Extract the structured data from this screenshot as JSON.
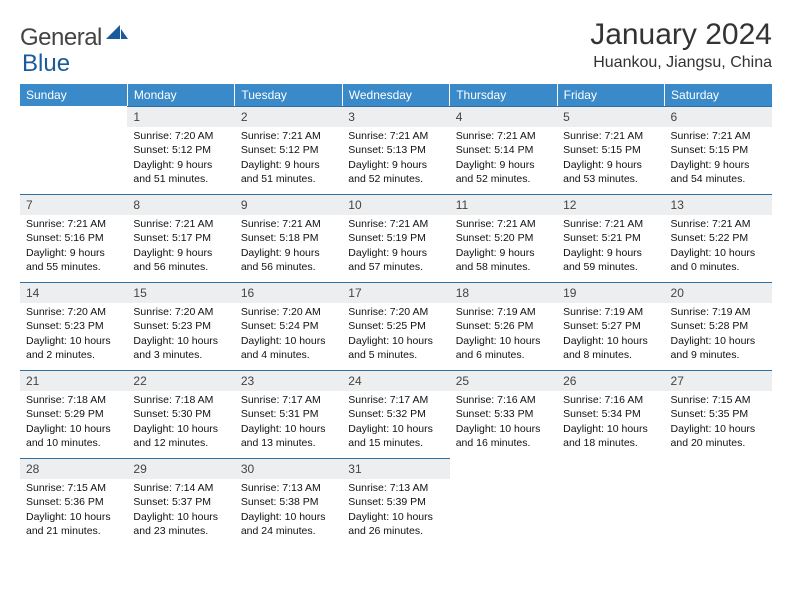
{
  "brand": {
    "name1": "General",
    "name2": "Blue"
  },
  "title": "January 2024",
  "location": "Huankou, Jiangsu, China",
  "colors": {
    "header_bg": "#3a8ac9",
    "header_text": "#ffffff",
    "daynum_bg": "#eceef0",
    "daynum_border": "#2f6fa3",
    "text": "#111111",
    "logo_gray": "#555555",
    "logo_blue": "#1a5b9c"
  },
  "weekdays": [
    "Sunday",
    "Monday",
    "Tuesday",
    "Wednesday",
    "Thursday",
    "Friday",
    "Saturday"
  ],
  "weeks": [
    [
      {
        "n": "",
        "sr": "",
        "ss": "",
        "dl": ""
      },
      {
        "n": "1",
        "sr": "Sunrise: 7:20 AM",
        "ss": "Sunset: 5:12 PM",
        "dl": "Daylight: 9 hours and 51 minutes."
      },
      {
        "n": "2",
        "sr": "Sunrise: 7:21 AM",
        "ss": "Sunset: 5:12 PM",
        "dl": "Daylight: 9 hours and 51 minutes."
      },
      {
        "n": "3",
        "sr": "Sunrise: 7:21 AM",
        "ss": "Sunset: 5:13 PM",
        "dl": "Daylight: 9 hours and 52 minutes."
      },
      {
        "n": "4",
        "sr": "Sunrise: 7:21 AM",
        "ss": "Sunset: 5:14 PM",
        "dl": "Daylight: 9 hours and 52 minutes."
      },
      {
        "n": "5",
        "sr": "Sunrise: 7:21 AM",
        "ss": "Sunset: 5:15 PM",
        "dl": "Daylight: 9 hours and 53 minutes."
      },
      {
        "n": "6",
        "sr": "Sunrise: 7:21 AM",
        "ss": "Sunset: 5:15 PM",
        "dl": "Daylight: 9 hours and 54 minutes."
      }
    ],
    [
      {
        "n": "7",
        "sr": "Sunrise: 7:21 AM",
        "ss": "Sunset: 5:16 PM",
        "dl": "Daylight: 9 hours and 55 minutes."
      },
      {
        "n": "8",
        "sr": "Sunrise: 7:21 AM",
        "ss": "Sunset: 5:17 PM",
        "dl": "Daylight: 9 hours and 56 minutes."
      },
      {
        "n": "9",
        "sr": "Sunrise: 7:21 AM",
        "ss": "Sunset: 5:18 PM",
        "dl": "Daylight: 9 hours and 56 minutes."
      },
      {
        "n": "10",
        "sr": "Sunrise: 7:21 AM",
        "ss": "Sunset: 5:19 PM",
        "dl": "Daylight: 9 hours and 57 minutes."
      },
      {
        "n": "11",
        "sr": "Sunrise: 7:21 AM",
        "ss": "Sunset: 5:20 PM",
        "dl": "Daylight: 9 hours and 58 minutes."
      },
      {
        "n": "12",
        "sr": "Sunrise: 7:21 AM",
        "ss": "Sunset: 5:21 PM",
        "dl": "Daylight: 9 hours and 59 minutes."
      },
      {
        "n": "13",
        "sr": "Sunrise: 7:21 AM",
        "ss": "Sunset: 5:22 PM",
        "dl": "Daylight: 10 hours and 0 minutes."
      }
    ],
    [
      {
        "n": "14",
        "sr": "Sunrise: 7:20 AM",
        "ss": "Sunset: 5:23 PM",
        "dl": "Daylight: 10 hours and 2 minutes."
      },
      {
        "n": "15",
        "sr": "Sunrise: 7:20 AM",
        "ss": "Sunset: 5:23 PM",
        "dl": "Daylight: 10 hours and 3 minutes."
      },
      {
        "n": "16",
        "sr": "Sunrise: 7:20 AM",
        "ss": "Sunset: 5:24 PM",
        "dl": "Daylight: 10 hours and 4 minutes."
      },
      {
        "n": "17",
        "sr": "Sunrise: 7:20 AM",
        "ss": "Sunset: 5:25 PM",
        "dl": "Daylight: 10 hours and 5 minutes."
      },
      {
        "n": "18",
        "sr": "Sunrise: 7:19 AM",
        "ss": "Sunset: 5:26 PM",
        "dl": "Daylight: 10 hours and 6 minutes."
      },
      {
        "n": "19",
        "sr": "Sunrise: 7:19 AM",
        "ss": "Sunset: 5:27 PM",
        "dl": "Daylight: 10 hours and 8 minutes."
      },
      {
        "n": "20",
        "sr": "Sunrise: 7:19 AM",
        "ss": "Sunset: 5:28 PM",
        "dl": "Daylight: 10 hours and 9 minutes."
      }
    ],
    [
      {
        "n": "21",
        "sr": "Sunrise: 7:18 AM",
        "ss": "Sunset: 5:29 PM",
        "dl": "Daylight: 10 hours and 10 minutes."
      },
      {
        "n": "22",
        "sr": "Sunrise: 7:18 AM",
        "ss": "Sunset: 5:30 PM",
        "dl": "Daylight: 10 hours and 12 minutes."
      },
      {
        "n": "23",
        "sr": "Sunrise: 7:17 AM",
        "ss": "Sunset: 5:31 PM",
        "dl": "Daylight: 10 hours and 13 minutes."
      },
      {
        "n": "24",
        "sr": "Sunrise: 7:17 AM",
        "ss": "Sunset: 5:32 PM",
        "dl": "Daylight: 10 hours and 15 minutes."
      },
      {
        "n": "25",
        "sr": "Sunrise: 7:16 AM",
        "ss": "Sunset: 5:33 PM",
        "dl": "Daylight: 10 hours and 16 minutes."
      },
      {
        "n": "26",
        "sr": "Sunrise: 7:16 AM",
        "ss": "Sunset: 5:34 PM",
        "dl": "Daylight: 10 hours and 18 minutes."
      },
      {
        "n": "27",
        "sr": "Sunrise: 7:15 AM",
        "ss": "Sunset: 5:35 PM",
        "dl": "Daylight: 10 hours and 20 minutes."
      }
    ],
    [
      {
        "n": "28",
        "sr": "Sunrise: 7:15 AM",
        "ss": "Sunset: 5:36 PM",
        "dl": "Daylight: 10 hours and 21 minutes."
      },
      {
        "n": "29",
        "sr": "Sunrise: 7:14 AM",
        "ss": "Sunset: 5:37 PM",
        "dl": "Daylight: 10 hours and 23 minutes."
      },
      {
        "n": "30",
        "sr": "Sunrise: 7:13 AM",
        "ss": "Sunset: 5:38 PM",
        "dl": "Daylight: 10 hours and 24 minutes."
      },
      {
        "n": "31",
        "sr": "Sunrise: 7:13 AM",
        "ss": "Sunset: 5:39 PM",
        "dl": "Daylight: 10 hours and 26 minutes."
      },
      {
        "n": "",
        "sr": "",
        "ss": "",
        "dl": ""
      },
      {
        "n": "",
        "sr": "",
        "ss": "",
        "dl": ""
      },
      {
        "n": "",
        "sr": "",
        "ss": "",
        "dl": ""
      }
    ]
  ]
}
